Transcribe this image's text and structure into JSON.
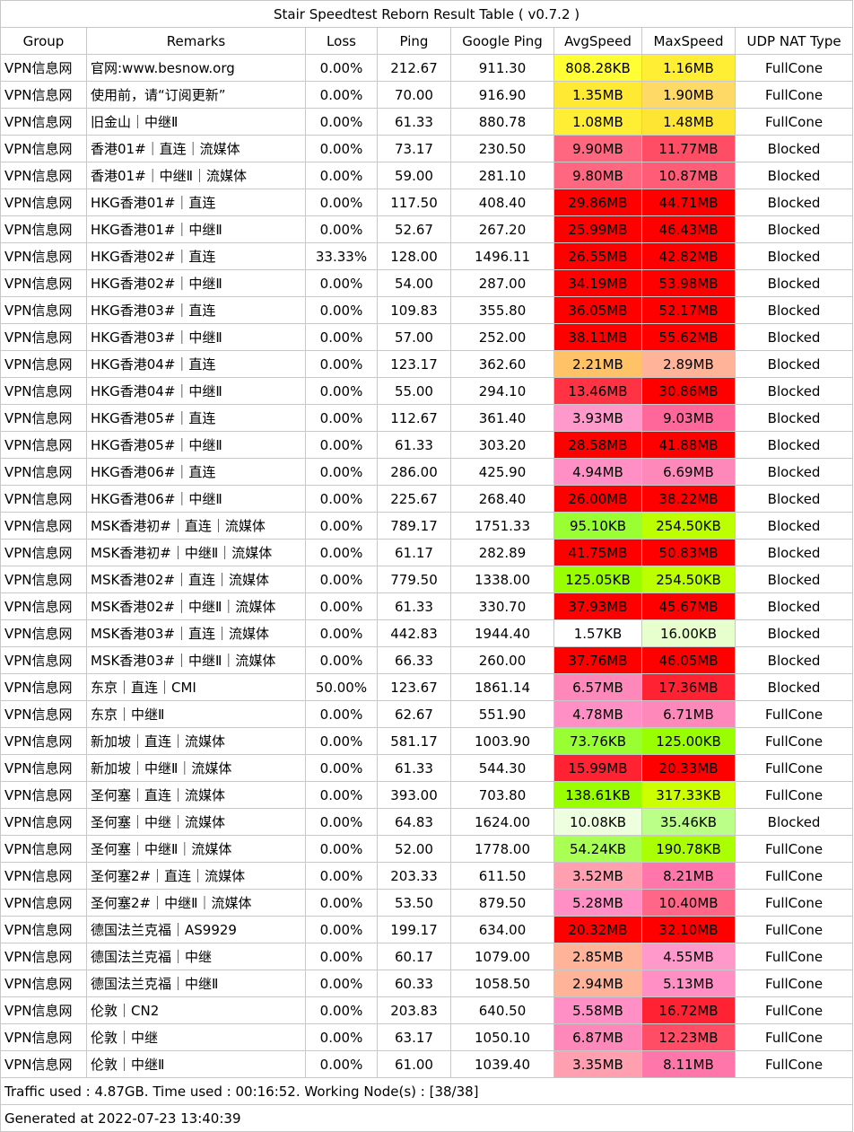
{
  "title": "Stair Speedtest Reborn Result Table ( v0.7.2 )",
  "headers": [
    "Group",
    "Remarks",
    "Loss",
    "Ping",
    "Google Ping",
    "AvgSpeed",
    "MaxSpeed",
    "UDP NAT Type"
  ],
  "rows": [
    {
      "group": "VPN信息网",
      "remarks": "官网:www.besnow.org",
      "loss": "0.00%",
      "ping": "212.67",
      "gping": "911.30",
      "avg": "808.28KB",
      "max": "1.16MB",
      "udp": "FullCone",
      "avg_color": "#ffff33",
      "max_color": "#ffee33"
    },
    {
      "group": "VPN信息网",
      "remarks": "使用前，请“订阅更新”",
      "loss": "0.00%",
      "ping": "70.00",
      "gping": "916.90",
      "avg": "1.35MB",
      "max": "1.90MB",
      "udp": "FullCone",
      "avg_color": "#ffe933",
      "max_color": "#ffd966"
    },
    {
      "group": "VPN信息网",
      "remarks": "旧金山｜中继Ⅱ",
      "loss": "0.00%",
      "ping": "61.33",
      "gping": "880.78",
      "avg": "1.08MB",
      "max": "1.48MB",
      "udp": "FullCone",
      "avg_color": "#ffee33",
      "max_color": "#ffe533"
    },
    {
      "group": "VPN信息网",
      "remarks": "香港01#｜直连｜流媒体",
      "loss": "0.00%",
      "ping": "73.17",
      "gping": "230.50",
      "avg": "9.90MB",
      "max": "11.77MB",
      "udp": "Blocked",
      "avg_color": "#ff6680",
      "max_color": "#ff4d66"
    },
    {
      "group": "VPN信息网",
      "remarks": "香港01#｜中继Ⅱ｜流媒体",
      "loss": "0.00%",
      "ping": "59.00",
      "gping": "281.10",
      "avg": "9.80MB",
      "max": "10.87MB",
      "udp": "Blocked",
      "avg_color": "#ff6680",
      "max_color": "#ff5c77"
    },
    {
      "group": "VPN信息网",
      "remarks": "HKG香港01#｜直连",
      "loss": "0.00%",
      "ping": "117.50",
      "gping": "408.40",
      "avg": "29.86MB",
      "max": "44.71MB",
      "udp": "Blocked",
      "avg_color": "#ff0000",
      "max_color": "#ff0000"
    },
    {
      "group": "VPN信息网",
      "remarks": "HKG香港01#｜中继Ⅱ",
      "loss": "0.00%",
      "ping": "52.67",
      "gping": "267.20",
      "avg": "25.99MB",
      "max": "46.43MB",
      "udp": "Blocked",
      "avg_color": "#ff0000",
      "max_color": "#ff0000"
    },
    {
      "group": "VPN信息网",
      "remarks": "HKG香港02#｜直连",
      "loss": "33.33%",
      "ping": "128.00",
      "gping": "1496.11",
      "avg": "26.55MB",
      "max": "42.82MB",
      "udp": "Blocked",
      "avg_color": "#ff0000",
      "max_color": "#ff0000"
    },
    {
      "group": "VPN信息网",
      "remarks": "HKG香港02#｜中继Ⅱ",
      "loss": "0.00%",
      "ping": "54.00",
      "gping": "287.00",
      "avg": "34.19MB",
      "max": "53.98MB",
      "udp": "Blocked",
      "avg_color": "#ff0000",
      "max_color": "#ff0000"
    },
    {
      "group": "VPN信息网",
      "remarks": "HKG香港03#｜直连",
      "loss": "0.00%",
      "ping": "109.83",
      "gping": "355.80",
      "avg": "36.05MB",
      "max": "52.17MB",
      "udp": "Blocked",
      "avg_color": "#ff0000",
      "max_color": "#ff0000"
    },
    {
      "group": "VPN信息网",
      "remarks": "HKG香港03#｜中继Ⅱ",
      "loss": "0.00%",
      "ping": "57.00",
      "gping": "252.00",
      "avg": "38.11MB",
      "max": "55.62MB",
      "udp": "Blocked",
      "avg_color": "#ff0000",
      "max_color": "#ff0000"
    },
    {
      "group": "VPN信息网",
      "remarks": "HKG香港04#｜直连",
      "loss": "0.00%",
      "ping": "123.17",
      "gping": "362.60",
      "avg": "2.21MB",
      "max": "2.89MB",
      "udp": "Blocked",
      "avg_color": "#ffc266",
      "max_color": "#ffb399"
    },
    {
      "group": "VPN信息网",
      "remarks": "HKG香港04#｜中继Ⅱ",
      "loss": "0.00%",
      "ping": "55.00",
      "gping": "294.10",
      "avg": "13.46MB",
      "max": "30.86MB",
      "udp": "Blocked",
      "avg_color": "#ff3344",
      "max_color": "#ff0000"
    },
    {
      "group": "VPN信息网",
      "remarks": "HKG香港05#｜直连",
      "loss": "0.00%",
      "ping": "112.67",
      "gping": "361.40",
      "avg": "3.93MB",
      "max": "9.03MB",
      "udp": "Blocked",
      "avg_color": "#ff99cc",
      "max_color": "#ff6699"
    },
    {
      "group": "VPN信息网",
      "remarks": "HKG香港05#｜中继Ⅱ",
      "loss": "0.00%",
      "ping": "61.33",
      "gping": "303.20",
      "avg": "28.58MB",
      "max": "41.88MB",
      "udp": "Blocked",
      "avg_color": "#ff0000",
      "max_color": "#ff0000"
    },
    {
      "group": "VPN信息网",
      "remarks": "HKG香港06#｜直连",
      "loss": "0.00%",
      "ping": "286.00",
      "gping": "425.90",
      "avg": "4.94MB",
      "max": "6.69MB",
      "udp": "Blocked",
      "avg_color": "#ff8fc4",
      "max_color": "#ff88bb"
    },
    {
      "group": "VPN信息网",
      "remarks": "HKG香港06#｜中继Ⅱ",
      "loss": "0.00%",
      "ping": "225.67",
      "gping": "268.40",
      "avg": "26.00MB",
      "max": "38.22MB",
      "udp": "Blocked",
      "avg_color": "#ff0000",
      "max_color": "#ff0000"
    },
    {
      "group": "VPN信息网",
      "remarks": "MSK香港初#｜直连｜流媒体",
      "loss": "0.00%",
      "ping": "789.17",
      "gping": "1751.33",
      "avg": "95.10KB",
      "max": "254.50KB",
      "udp": "Blocked",
      "avg_color": "#99ff33",
      "max_color": "#bbff00"
    },
    {
      "group": "VPN信息网",
      "remarks": "MSK香港初#｜中继Ⅱ｜流媒体",
      "loss": "0.00%",
      "ping": "61.17",
      "gping": "282.89",
      "avg": "41.75MB",
      "max": "50.83MB",
      "udp": "Blocked",
      "avg_color": "#ff0000",
      "max_color": "#ff0000"
    },
    {
      "group": "VPN信息网",
      "remarks": "MSK香港02#｜直连｜流媒体",
      "loss": "0.00%",
      "ping": "779.50",
      "gping": "1338.00",
      "avg": "125.05KB",
      "max": "254.50KB",
      "udp": "Blocked",
      "avg_color": "#99ff00",
      "max_color": "#bbff00"
    },
    {
      "group": "VPN信息网",
      "remarks": "MSK香港02#｜中继Ⅱ｜流媒体",
      "loss": "0.00%",
      "ping": "61.33",
      "gping": "330.70",
      "avg": "37.93MB",
      "max": "45.67MB",
      "udp": "Blocked",
      "avg_color": "#ff0000",
      "max_color": "#ff0000"
    },
    {
      "group": "VPN信息网",
      "remarks": "MSK香港03#｜直连｜流媒体",
      "loss": "0.00%",
      "ping": "442.83",
      "gping": "1944.40",
      "avg": "1.57KB",
      "max": "16.00KB",
      "udp": "Blocked",
      "avg_color": "#ffffff",
      "max_color": "#e6ffcc"
    },
    {
      "group": "VPN信息网",
      "remarks": "MSK香港03#｜中继Ⅱ｜流媒体",
      "loss": "0.00%",
      "ping": "66.33",
      "gping": "260.00",
      "avg": "37.76MB",
      "max": "46.05MB",
      "udp": "Blocked",
      "avg_color": "#ff0000",
      "max_color": "#ff0000"
    },
    {
      "group": "VPN信息网",
      "remarks": "东京｜直连｜CMI",
      "loss": "50.00%",
      "ping": "123.67",
      "gping": "1861.14",
      "avg": "6.57MB",
      "max": "17.36MB",
      "udp": "Blocked",
      "avg_color": "#ff88bb",
      "max_color": "#ff2233"
    },
    {
      "group": "VPN信息网",
      "remarks": "东京｜中继Ⅱ",
      "loss": "0.00%",
      "ping": "62.67",
      "gping": "551.90",
      "avg": "4.78MB",
      "max": "6.71MB",
      "udp": "FullCone",
      "avg_color": "#ff8fc4",
      "max_color": "#ff88bb"
    },
    {
      "group": "VPN信息网",
      "remarks": "新加坡｜直连｜流媒体",
      "loss": "0.00%",
      "ping": "581.17",
      "gping": "1003.90",
      "avg": "73.76KB",
      "max": "125.00KB",
      "udp": "FullCone",
      "avg_color": "#99ff33",
      "max_color": "#99ff00"
    },
    {
      "group": "VPN信息网",
      "remarks": "新加坡｜中继Ⅱ｜流媒体",
      "loss": "0.00%",
      "ping": "61.33",
      "gping": "544.30",
      "avg": "15.99MB",
      "max": "20.33MB",
      "udp": "FullCone",
      "avg_color": "#ff2233",
      "max_color": "#ff0000"
    },
    {
      "group": "VPN信息网",
      "remarks": "圣何塞｜直连｜流媒体",
      "loss": "0.00%",
      "ping": "393.00",
      "gping": "703.80",
      "avg": "138.61KB",
      "max": "317.33KB",
      "udp": "FullCone",
      "avg_color": "#99ff00",
      "max_color": "#ccff00"
    },
    {
      "group": "VPN信息网",
      "remarks": "圣何塞｜中继｜流媒体",
      "loss": "0.00%",
      "ping": "64.83",
      "gping": "1624.00",
      "avg": "10.08KB",
      "max": "35.46KB",
      "udp": "Blocked",
      "avg_color": "#eeffe0",
      "max_color": "#bbff88"
    },
    {
      "group": "VPN信息网",
      "remarks": "圣何塞｜中继Ⅱ｜流媒体",
      "loss": "0.00%",
      "ping": "52.00",
      "gping": "1778.00",
      "avg": "54.24KB",
      "max": "190.78KB",
      "udp": "FullCone",
      "avg_color": "#aaff55",
      "max_color": "#aaff00"
    },
    {
      "group": "VPN信息网",
      "remarks": "圣何塞2#｜直连｜流媒体",
      "loss": "0.00%",
      "ping": "203.33",
      "gping": "611.50",
      "avg": "3.52MB",
      "max": "8.21MB",
      "udp": "FullCone",
      "avg_color": "#ff9fb0",
      "max_color": "#ff77aa"
    },
    {
      "group": "VPN信息网",
      "remarks": "圣何塞2#｜中继Ⅱ｜流媒体",
      "loss": "0.00%",
      "ping": "53.50",
      "gping": "879.50",
      "avg": "5.28MB",
      "max": "10.40MB",
      "udp": "FullCone",
      "avg_color": "#ff8fc4",
      "max_color": "#ff6688"
    },
    {
      "group": "VPN信息网",
      "remarks": "德国法兰克福｜AS9929",
      "loss": "0.00%",
      "ping": "199.17",
      "gping": "634.00",
      "avg": "20.32MB",
      "max": "32.10MB",
      "udp": "FullCone",
      "avg_color": "#ff0000",
      "max_color": "#ff0000"
    },
    {
      "group": "VPN信息网",
      "remarks": "德国法兰克福｜中继",
      "loss": "0.00%",
      "ping": "60.17",
      "gping": "1079.00",
      "avg": "2.85MB",
      "max": "4.55MB",
      "udp": "FullCone",
      "avg_color": "#ffb399",
      "max_color": "#ff99cc"
    },
    {
      "group": "VPN信息网",
      "remarks": "德国法兰克福｜中继Ⅱ",
      "loss": "0.00%",
      "ping": "60.33",
      "gping": "1058.50",
      "avg": "2.94MB",
      "max": "5.13MB",
      "udp": "FullCone",
      "avg_color": "#ffb399",
      "max_color": "#ff8fc4"
    },
    {
      "group": "VPN信息网",
      "remarks": "伦敦｜CN2",
      "loss": "0.00%",
      "ping": "203.83",
      "gping": "640.50",
      "avg": "5.58MB",
      "max": "16.72MB",
      "udp": "FullCone",
      "avg_color": "#ff8fc4",
      "max_color": "#ff2233"
    },
    {
      "group": "VPN信息网",
      "remarks": "伦敦｜中继",
      "loss": "0.00%",
      "ping": "63.17",
      "gping": "1050.10",
      "avg": "6.87MB",
      "max": "12.23MB",
      "udp": "FullCone",
      "avg_color": "#ff88bb",
      "max_color": "#ff4d66"
    },
    {
      "group": "VPN信息网",
      "remarks": "伦敦｜中继Ⅱ",
      "loss": "0.00%",
      "ping": "61.00",
      "gping": "1039.40",
      "avg": "3.35MB",
      "max": "8.11MB",
      "udp": "FullCone",
      "avg_color": "#ff9fb0",
      "max_color": "#ff77aa"
    }
  ],
  "footer": {
    "traffic": "Traffic used : 4.87GB. Time used : 00:16:52. Working Node(s) : [38/38]",
    "generated": "Generated at 2022-07-23 13:40:39"
  }
}
